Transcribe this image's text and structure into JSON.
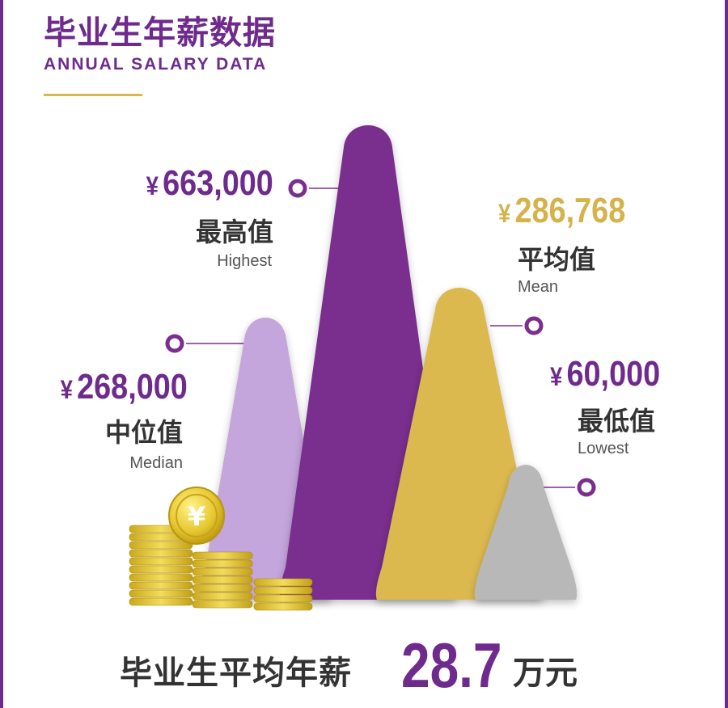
{
  "header": {
    "title_cn": "毕业生年薪数据",
    "title_en": "ANNUAL SALARY DATA"
  },
  "chart_data": {
    "type": "bar",
    "categories": [
      "中位值",
      "最高值",
      "平均值",
      "最低值"
    ],
    "values": [
      268000,
      663000,
      286768,
      60000
    ],
    "currency_symbol": "¥",
    "entries": [
      {
        "key": "median",
        "value_text": "268,000",
        "label_cn": "中位值",
        "label_en": "Median",
        "color": "#c4a5dc"
      },
      {
        "key": "highest",
        "value_text": "663,000",
        "label_cn": "最高值",
        "label_en": "Highest",
        "color": "#7a2f8e"
      },
      {
        "key": "mean",
        "value_text": "286,768",
        "label_cn": "平均值",
        "label_en": "Mean",
        "color": "#dbb94f"
      },
      {
        "key": "lowest",
        "value_text": "60,000",
        "label_cn": "最低值",
        "label_en": "Lowest",
        "color": "#b8b8b8"
      }
    ],
    "value_color_purple": "#6e2a8c",
    "value_color_gold": "#d4b34a"
  },
  "footer": {
    "lead": "毕业生平均年薪",
    "number": "28.7",
    "unit": "万元"
  },
  "decor": {
    "coin_symbol": "¥",
    "coin_color": "#e8c832"
  }
}
